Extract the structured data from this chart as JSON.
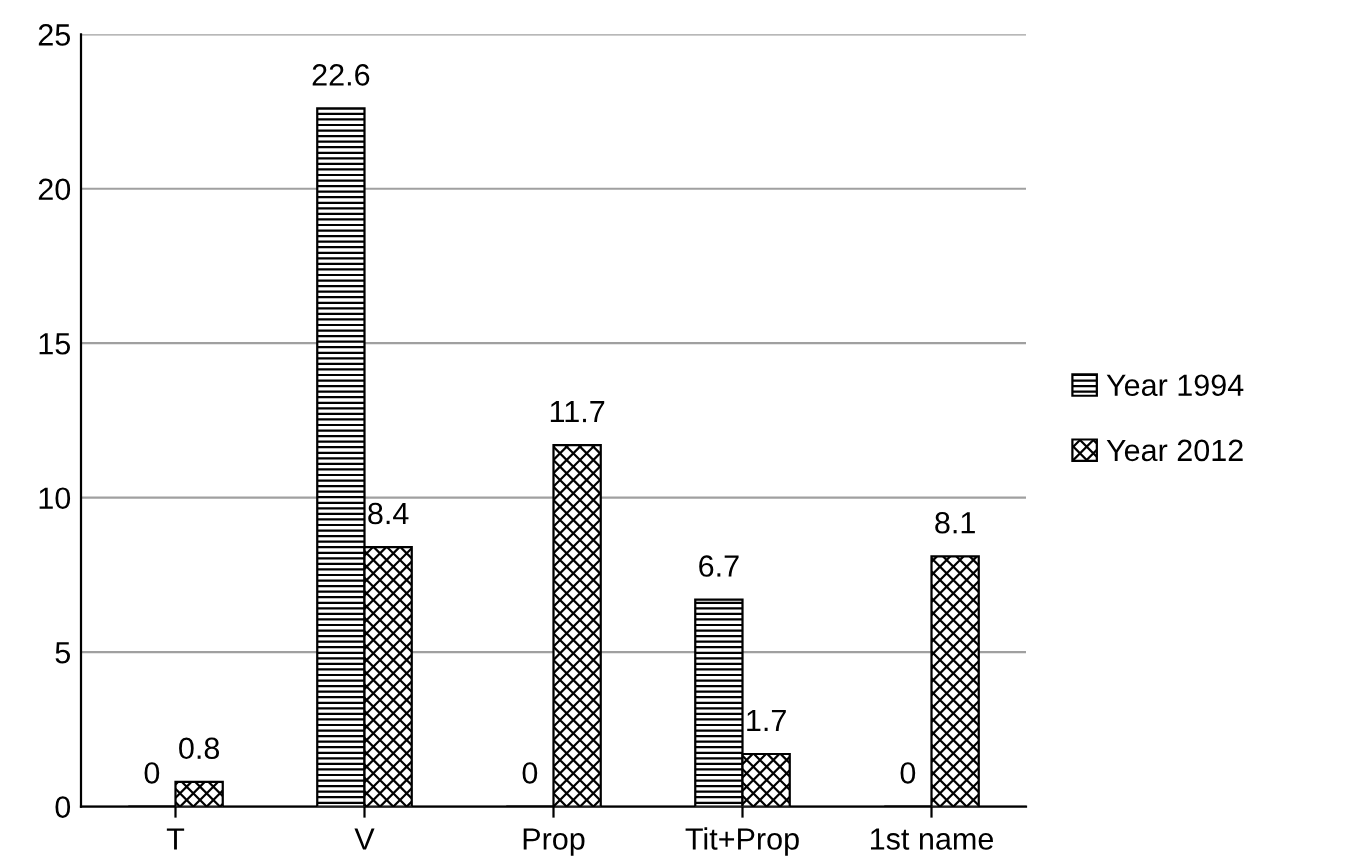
{
  "chart_data": {
    "type": "bar",
    "categories": [
      "T",
      "V",
      "Prop",
      "Tit+Prop",
      "1st name"
    ],
    "series": [
      {
        "name": "Year 1994",
        "color": "#000000",
        "values": [
          0,
          22.6,
          0,
          6.7,
          0
        ]
      },
      {
        "name": "Year 2012",
        "color": "#000000",
        "values": [
          0.8,
          8.4,
          11.7,
          1.7,
          8.1
        ]
      }
    ],
    "ylim": [
      0,
      25
    ],
    "yticks": [
      0,
      5,
      10,
      15,
      20,
      25
    ],
    "grid": "y",
    "legend": "right",
    "data_labels": true
  }
}
